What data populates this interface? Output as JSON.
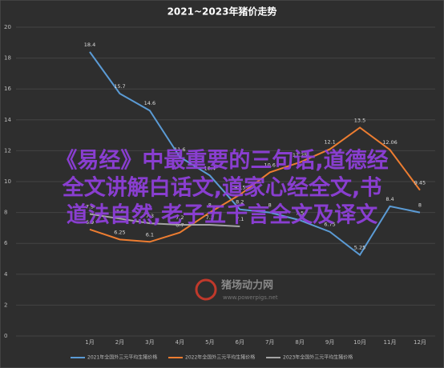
{
  "chart_data": {
    "type": "line",
    "title": "2021~2023年猪价走势",
    "categories": [
      "1月",
      "2月",
      "3月",
      "4月",
      "5月",
      "6月",
      "7月",
      "8月",
      "9月",
      "10月",
      "11月",
      "12月"
    ],
    "series": [
      {
        "name": "2021年全国外三元平均生猪价格",
        "color": "#5b9bd5",
        "values": [
          18.4,
          15.7,
          14.6,
          11.6,
          10.4,
          8.2,
          8.0,
          7.5,
          6.75,
          5.25,
          8.4,
          8.0
        ]
      },
      {
        "name": "2022年全国外三元平均生猪价格",
        "color": "#ed7d31",
        "values": [
          6.9,
          6.25,
          6.1,
          6.7,
          8.0,
          9.15,
          10.6,
          11.25,
          12.1,
          13.5,
          12.06,
          9.45
        ]
      },
      {
        "name": "2023年全国外三元平均生猪价格",
        "color": "#a5a5a5",
        "values": [
          7.9,
          7.6,
          7.3,
          7.2,
          7.2,
          7.1,
          null,
          null,
          null,
          null,
          null,
          null
        ]
      }
    ],
    "ylim": [
      0,
      20
    ],
    "yticks": [
      0,
      2,
      4,
      6,
      8,
      10,
      12,
      14,
      16,
      18,
      20
    ],
    "grid": true,
    "legend": "bottom",
    "annotations": [
      "《易经》中最重要的三句话,道德经",
      "全文讲解白话文,道家心经全文,书",
      "道法自然,老子五千言全文及译文",
      "猪场动力网",
      "www.powerpigs.net"
    ]
  }
}
